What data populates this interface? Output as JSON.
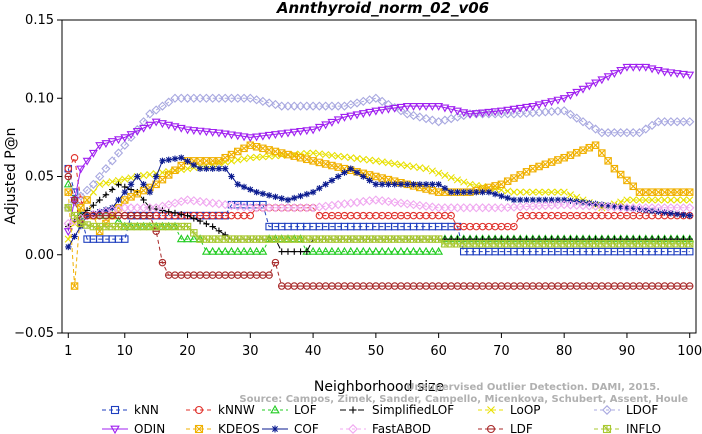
{
  "chart_data": {
    "type": "line",
    "title": "Annthyroid_norm_02_v06",
    "xlabel": "Neighborhood size",
    "ylabel": "Adjusted P@n",
    "xlim": [
      0,
      101
    ],
    "ylim": [
      -0.05,
      0.15
    ],
    "xticks": [
      1,
      10,
      20,
      30,
      40,
      50,
      60,
      70,
      80,
      90,
      100
    ],
    "yticks": [
      -0.05,
      0.0,
      0.05,
      0.1,
      0.15
    ],
    "ytick_labels": [
      "−0.05",
      "0.00",
      "0.05",
      "0.10",
      "0.15"
    ],
    "legend_position": "bottom",
    "credit_lines": [
      "Source: Campos, Zimek, Sander, Campello, Micenkova, Schubert, Assent, Houle",
      "Unsupervised Outlier Detection. DAMI, 2015."
    ],
    "series": [
      {
        "name": "kNN",
        "color": "#1f3fbf",
        "marker": "square",
        "dash": "4,3",
        "knots": [
          [
            1,
            0.055
          ],
          [
            2,
            0.04
          ],
          [
            3,
            0.025
          ],
          [
            4,
            0.01
          ],
          [
            10,
            0.01
          ],
          [
            11,
            0.025
          ],
          [
            26,
            0.025
          ],
          [
            27,
            0.032
          ],
          [
            32,
            0.032
          ],
          [
            33,
            0.018
          ],
          [
            63,
            0.018
          ],
          [
            64,
            0.002
          ],
          [
            100,
            0.002
          ]
        ]
      },
      {
        "name": "kNNW",
        "color": "#e0302a",
        "marker": "circle",
        "dash": "4,3",
        "knots": [
          [
            1,
            0.055
          ],
          [
            2,
            0.062
          ],
          [
            3,
            0.035
          ],
          [
            4,
            0.025
          ],
          [
            30,
            0.025
          ],
          [
            31,
            0.03
          ],
          [
            40,
            0.03
          ],
          [
            41,
            0.025
          ],
          [
            62,
            0.025
          ],
          [
            63,
            0.018
          ],
          [
            72,
            0.018
          ],
          [
            73,
            0.025
          ],
          [
            100,
            0.025
          ]
        ]
      },
      {
        "name": "LOF",
        "color": "#22cc22",
        "marker": "triangle-up",
        "dash": "3,3",
        "knots": [
          [
            1,
            0.045
          ],
          [
            3,
            0.025
          ],
          [
            8,
            0.025
          ],
          [
            10,
            0.018
          ],
          [
            18,
            0.018
          ],
          [
            19,
            0.01
          ],
          [
            22,
            0.01
          ],
          [
            23,
            0.002
          ],
          [
            32,
            0.002
          ],
          [
            33,
            0.01
          ],
          [
            38,
            0.01
          ],
          [
            39,
            0.002
          ],
          [
            60,
            0.002
          ],
          [
            61,
            0.01
          ],
          [
            100,
            0.01
          ]
        ]
      },
      {
        "name": "SimplifiedLOF",
        "color": "#000000",
        "marker": "plus",
        "dash": "6,3",
        "knots": [
          [
            1,
            0.018
          ],
          [
            3,
            0.025
          ],
          [
            6,
            0.035
          ],
          [
            9,
            0.045
          ],
          [
            12,
            0.04
          ],
          [
            14,
            0.03
          ],
          [
            20,
            0.025
          ],
          [
            24,
            0.018
          ],
          [
            27,
            0.01
          ],
          [
            34,
            0.01
          ],
          [
            35,
            0.002
          ],
          [
            39,
            0.002
          ],
          [
            40,
            0.01
          ],
          [
            100,
            0.01
          ]
        ]
      },
      {
        "name": "LoOP",
        "color": "#e8e000",
        "marker": "x",
        "dash": "4,3",
        "knots": [
          [
            1,
            0.01
          ],
          [
            3,
            0.03
          ],
          [
            6,
            0.045
          ],
          [
            12,
            0.05
          ],
          [
            20,
            0.055
          ],
          [
            30,
            0.062
          ],
          [
            40,
            0.065
          ],
          [
            50,
            0.06
          ],
          [
            58,
            0.055
          ],
          [
            65,
            0.045
          ],
          [
            72,
            0.04
          ],
          [
            80,
            0.04
          ],
          [
            86,
            0.03
          ],
          [
            90,
            0.035
          ],
          [
            100,
            0.035
          ]
        ]
      },
      {
        "name": "LDOF",
        "color": "#a8a8e0",
        "marker": "diamond",
        "dash": "3,3",
        "knots": [
          [
            1,
            0.03
          ],
          [
            5,
            0.045
          ],
          [
            10,
            0.07
          ],
          [
            14,
            0.09
          ],
          [
            18,
            0.1
          ],
          [
            22,
            0.1
          ],
          [
            26,
            0.1
          ],
          [
            30,
            0.1
          ],
          [
            35,
            0.095
          ],
          [
            40,
            0.095
          ],
          [
            45,
            0.095
          ],
          [
            50,
            0.1
          ],
          [
            55,
            0.09
          ],
          [
            60,
            0.085
          ],
          [
            65,
            0.09
          ],
          [
            72,
            0.09
          ],
          [
            80,
            0.092
          ],
          [
            86,
            0.078
          ],
          [
            92,
            0.078
          ],
          [
            95,
            0.085
          ],
          [
            100,
            0.085
          ]
        ]
      },
      {
        "name": "ODIN",
        "color": "#a020f0",
        "marker": "triangle-down",
        "dash": "",
        "knots": [
          [
            1,
            0.015
          ],
          [
            3,
            0.055
          ],
          [
            6,
            0.07
          ],
          [
            10,
            0.075
          ],
          [
            15,
            0.085
          ],
          [
            20,
            0.08
          ],
          [
            25,
            0.078
          ],
          [
            30,
            0.075
          ],
          [
            36,
            0.078
          ],
          [
            40,
            0.08
          ],
          [
            45,
            0.088
          ],
          [
            50,
            0.092
          ],
          [
            55,
            0.095
          ],
          [
            60,
            0.095
          ],
          [
            65,
            0.09
          ],
          [
            70,
            0.092
          ],
          [
            75,
            0.095
          ],
          [
            80,
            0.1
          ],
          [
            85,
            0.11
          ],
          [
            90,
            0.12
          ],
          [
            93,
            0.12
          ],
          [
            96,
            0.117
          ],
          [
            100,
            0.115
          ]
        ]
      },
      {
        "name": "KDEOS",
        "color": "#f0b000",
        "marker": "boxed-x",
        "dash": "4,3",
        "knots": [
          [
            1,
            0.04
          ],
          [
            2,
            -0.02
          ],
          [
            3,
            0.03
          ],
          [
            4,
            0.035
          ],
          [
            6,
            0.015
          ],
          [
            10,
            0.035
          ],
          [
            15,
            0.045
          ],
          [
            20,
            0.06
          ],
          [
            25,
            0.06
          ],
          [
            30,
            0.07
          ],
          [
            35,
            0.065
          ],
          [
            40,
            0.06
          ],
          [
            50,
            0.05
          ],
          [
            55,
            0.045
          ],
          [
            60,
            0.04
          ],
          [
            65,
            0.04
          ],
          [
            70,
            0.045
          ],
          [
            75,
            0.055
          ],
          [
            80,
            0.062
          ],
          [
            85,
            0.07
          ],
          [
            88,
            0.055
          ],
          [
            92,
            0.04
          ],
          [
            100,
            0.04
          ]
        ]
      },
      {
        "name": "COF",
        "color": "#0a1a8f",
        "marker": "star",
        "dash": "",
        "knots": [
          [
            1,
            0.005
          ],
          [
            4,
            0.025
          ],
          [
            8,
            0.03
          ],
          [
            10,
            0.04
          ],
          [
            12,
            0.05
          ],
          [
            14,
            0.04
          ],
          [
            16,
            0.06
          ],
          [
            19,
            0.062
          ],
          [
            22,
            0.055
          ],
          [
            26,
            0.055
          ],
          [
            28,
            0.045
          ],
          [
            31,
            0.04
          ],
          [
            36,
            0.035
          ],
          [
            40,
            0.04
          ],
          [
            46,
            0.055
          ],
          [
            50,
            0.045
          ],
          [
            60,
            0.045
          ],
          [
            62,
            0.04
          ],
          [
            68,
            0.04
          ],
          [
            72,
            0.035
          ],
          [
            80,
            0.035
          ],
          [
            100,
            0.025
          ]
        ]
      },
      {
        "name": "FastABOD",
        "color": "#f0a8f0",
        "marker": "diamond",
        "dash": "3,3",
        "knots": [
          [
            1,
            0.02
          ],
          [
            4,
            0.025
          ],
          [
            10,
            0.03
          ],
          [
            15,
            0.03
          ],
          [
            20,
            0.035
          ],
          [
            30,
            0.03
          ],
          [
            40,
            0.03
          ],
          [
            50,
            0.035
          ],
          [
            60,
            0.03
          ],
          [
            70,
            0.03
          ],
          [
            80,
            0.032
          ],
          [
            90,
            0.03
          ],
          [
            100,
            0.03
          ]
        ]
      },
      {
        "name": "LDF",
        "color": "#a82a2a",
        "marker": "circle-dot",
        "dash": "4,3",
        "knots": [
          [
            1,
            0.05
          ],
          [
            2,
            0.035
          ],
          [
            3,
            0.02
          ],
          [
            4,
            0.025
          ],
          [
            14,
            0.025
          ],
          [
            15,
            0.015
          ],
          [
            16,
            -0.005
          ],
          [
            17,
            -0.013
          ],
          [
            33,
            -0.013
          ],
          [
            34,
            -0.005
          ],
          [
            35,
            -0.02
          ],
          [
            100,
            -0.02
          ]
        ]
      },
      {
        "name": "INFLO",
        "color": "#a8c830",
        "marker": "boxed-star",
        "dash": "4,3",
        "knots": [
          [
            1,
            0.03
          ],
          [
            3,
            0.02
          ],
          [
            5,
            0.018
          ],
          [
            10,
            0.018
          ],
          [
            15,
            0.018
          ],
          [
            20,
            0.018
          ],
          [
            22,
            0.01
          ],
          [
            40,
            0.01
          ],
          [
            60,
            0.01
          ],
          [
            61,
            0.007
          ],
          [
            100,
            0.007
          ]
        ]
      }
    ]
  }
}
